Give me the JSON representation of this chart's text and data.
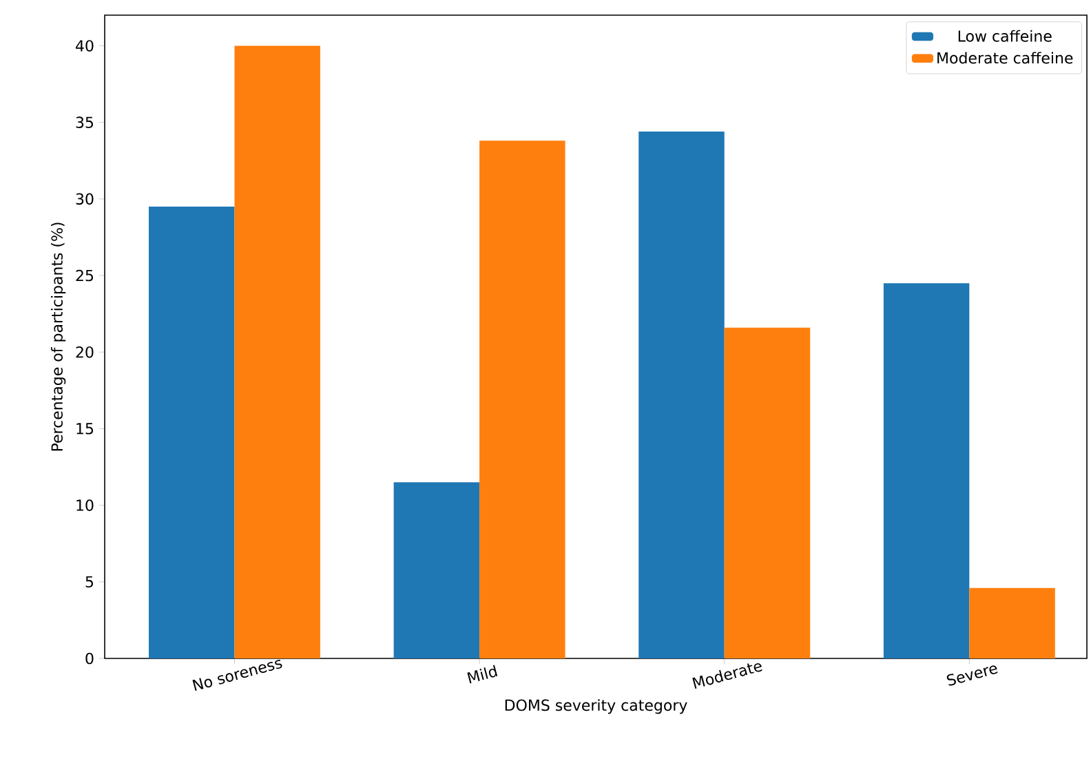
{
  "chart_data": {
    "type": "bar",
    "xlabel": "DOMS severity category",
    "ylabel": "Percentage of participants (%)",
    "categories": [
      "No soreness",
      "Mild",
      "Moderate",
      "Severe"
    ],
    "series": [
      {
        "name": "Low caffeine",
        "color": "#1f77b4",
        "values": [
          29.5,
          11.5,
          34.4,
          24.5
        ]
      },
      {
        "name": "Moderate caffeine",
        "color": "#ff7f0e",
        "values": [
          40.0,
          33.8,
          21.6,
          4.6
        ]
      }
    ],
    "ylim": [
      0,
      42
    ],
    "yticks": [
      0,
      5,
      10,
      15,
      20,
      25,
      30,
      35,
      40
    ],
    "grid": false,
    "legend": "top right"
  }
}
